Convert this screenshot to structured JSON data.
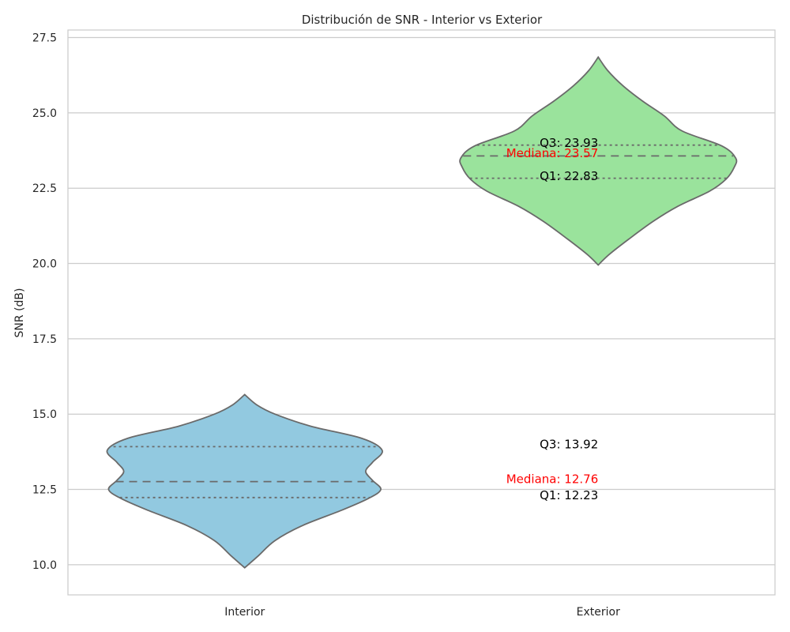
{
  "chart_data": {
    "type": "violin",
    "title": "Distribución de SNR - Interior vs Exterior",
    "xlabel": "",
    "ylabel": "SNR (dB)",
    "ylim": [
      9.0,
      27.75
    ],
    "yticks": [
      10.0,
      12.5,
      15.0,
      17.5,
      20.0,
      22.5,
      25.0,
      27.5
    ],
    "ytick_labels": [
      "10.0",
      "12.5",
      "15.0",
      "17.5",
      "20.0",
      "22.5",
      "25.0",
      "27.5"
    ],
    "categories": [
      "Interior",
      "Exterior"
    ],
    "grid": "horizontal",
    "series": [
      {
        "category": "Interior",
        "color": "#92c9e0",
        "min": 9.9,
        "max": 15.65,
        "q1": 12.23,
        "median": 12.76,
        "q3": 13.92,
        "profile": [
          [
            9.9,
            0.0
          ],
          [
            10.3,
            0.1
          ],
          [
            10.8,
            0.22
          ],
          [
            11.3,
            0.42
          ],
          [
            11.8,
            0.7
          ],
          [
            12.2,
            0.9
          ],
          [
            12.5,
            0.99
          ],
          [
            12.8,
            0.93
          ],
          [
            13.1,
            0.88
          ],
          [
            13.4,
            0.93
          ],
          [
            13.8,
            1.0
          ],
          [
            14.2,
            0.85
          ],
          [
            14.6,
            0.48
          ],
          [
            15.0,
            0.22
          ],
          [
            15.3,
            0.09
          ],
          [
            15.65,
            0.0
          ]
        ]
      },
      {
        "category": "Exterior",
        "color": "#9ae39c",
        "min": 19.95,
        "max": 26.85,
        "q1": 22.83,
        "median": 23.57,
        "q3": 23.93,
        "profile": [
          [
            19.95,
            0.0
          ],
          [
            20.3,
            0.08
          ],
          [
            20.8,
            0.22
          ],
          [
            21.4,
            0.4
          ],
          [
            21.9,
            0.58
          ],
          [
            22.4,
            0.81
          ],
          [
            22.8,
            0.93
          ],
          [
            23.2,
            0.99
          ],
          [
            23.5,
            1.0
          ],
          [
            23.9,
            0.9
          ],
          [
            24.4,
            0.61
          ],
          [
            24.9,
            0.48
          ],
          [
            25.4,
            0.32
          ],
          [
            25.9,
            0.18
          ],
          [
            26.4,
            0.07
          ],
          [
            26.85,
            0.0
          ]
        ]
      }
    ],
    "annotations": [
      {
        "category": "Exterior",
        "y": 24.0,
        "text": "Q3: 23.93",
        "color": "#000000"
      },
      {
        "category": "Exterior",
        "y": 23.66,
        "text": "Mediana: 23.57",
        "color": "#ff0000"
      },
      {
        "category": "Exterior",
        "y": 22.9,
        "text": "Q1: 22.83",
        "color": "#000000"
      },
      {
        "category": "Exterior",
        "y": 13.99,
        "text": "Q3: 13.92",
        "color": "#000000"
      },
      {
        "category": "Exterior",
        "y": 12.84,
        "text": "Mediana: 12.76",
        "color": "#ff0000"
      },
      {
        "category": "Exterior",
        "y": 12.3,
        "text": "Q1: 12.23",
        "color": "#000000"
      }
    ]
  }
}
